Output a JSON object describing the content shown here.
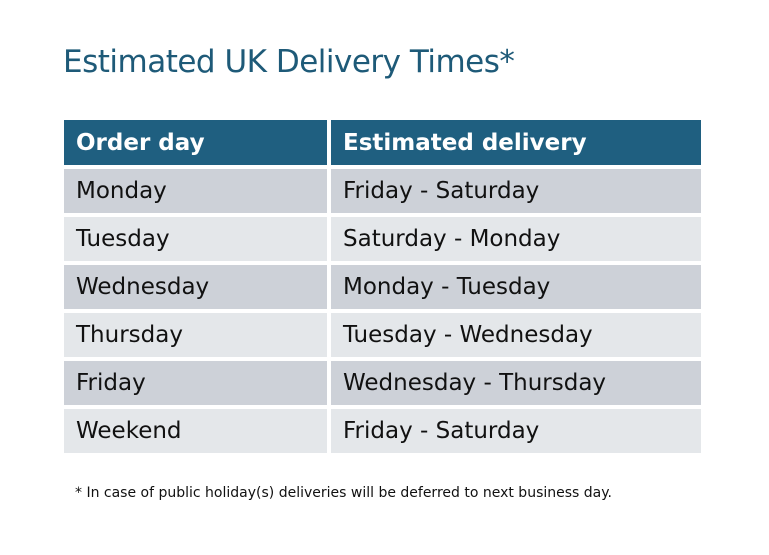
{
  "title": "Estimated UK Delivery Times*",
  "table": {
    "headers": [
      "Order day",
      "Estimated delivery"
    ],
    "rows": [
      [
        "Monday",
        "Friday - Saturday"
      ],
      [
        "Tuesday",
        "Saturday - Monday"
      ],
      [
        "Wednesday",
        "Monday - Tuesday"
      ],
      [
        "Thursday",
        "Tuesday - Wednesday"
      ],
      [
        "Friday",
        "Wednesday - Thursday"
      ],
      [
        "Weekend",
        "Friday - Saturday"
      ]
    ]
  },
  "footnote": "* In case of public holiday(s) deliveries will be deferred to next business day.",
  "colors": {
    "title": "#1e5a78",
    "header_bg": "#1f5f80",
    "row_odd": "#cdd1d8",
    "row_even": "#e4e7ea"
  }
}
